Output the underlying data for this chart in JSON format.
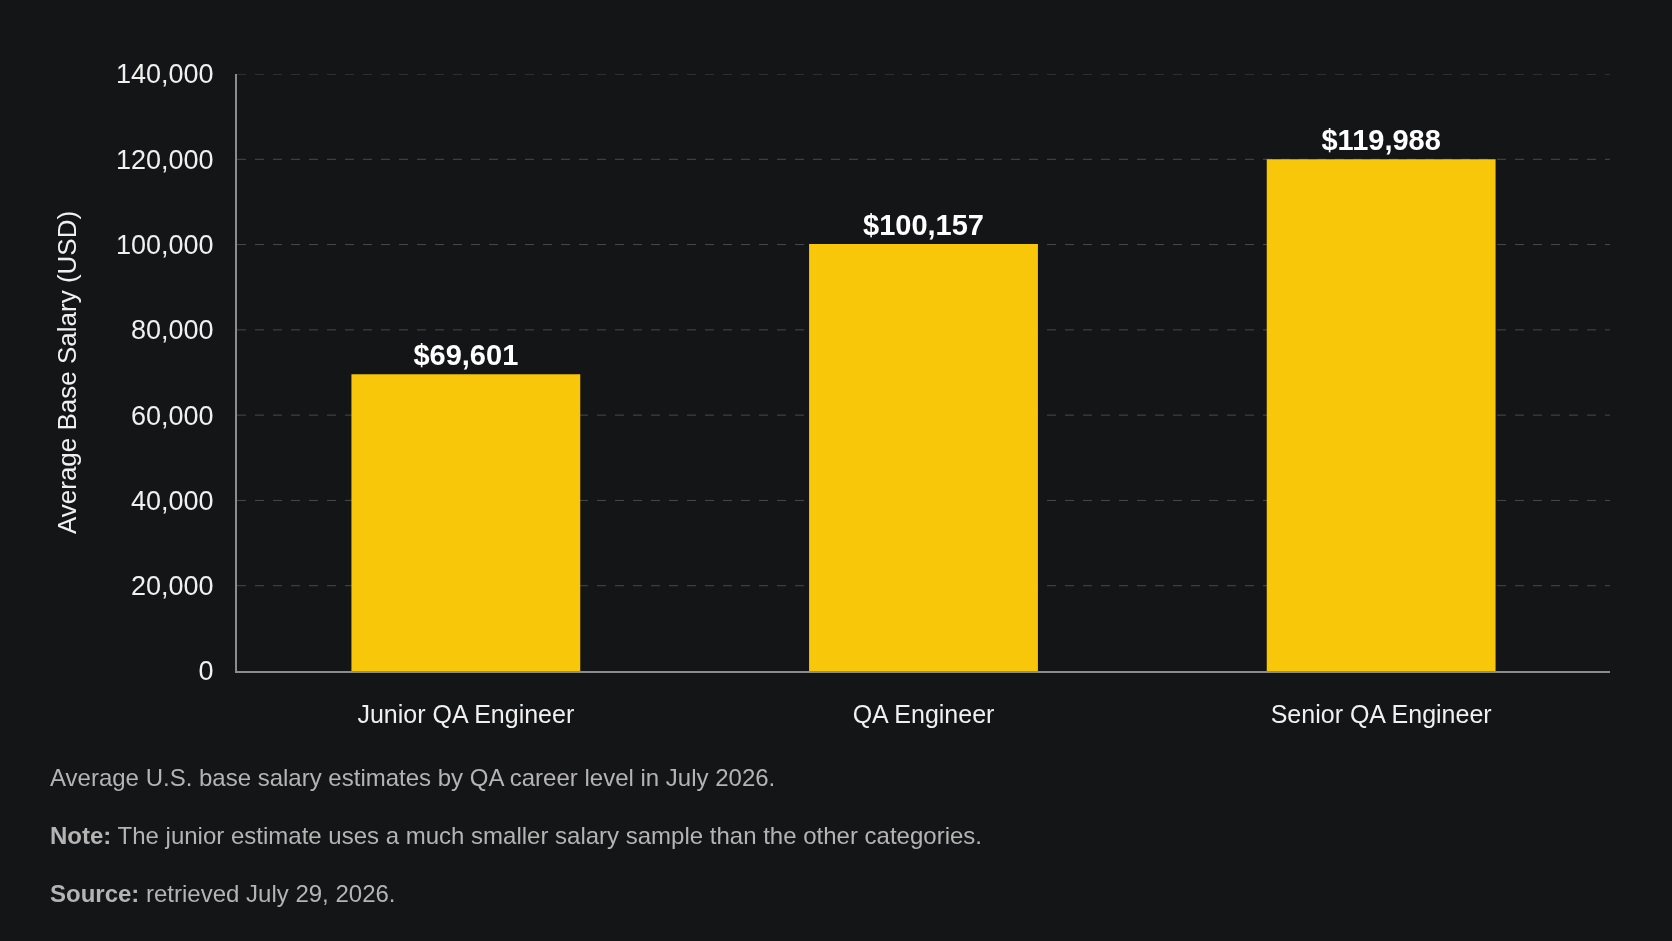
{
  "chart_data": {
    "type": "bar",
    "categories": [
      "Junior QA Engineer",
      "QA Engineer",
      "Senior QA Engineer"
    ],
    "values": [
      69601,
      100157,
      119988
    ],
    "color": "#f8c70a",
    "value_labels": [
      "$69,601",
      "$100,157",
      "$119,988"
    ],
    "ylabel": "Average Base Salary (USD)",
    "ylim": [
      0,
      140000
    ],
    "yticks": [
      0,
      {
        "value": 20000,
        "label": "20,000"
      },
      {
        "value": 40000,
        "label": "40,000"
      },
      {
        "value": 60000,
        "label": "60,000"
      },
      {
        "value": 80000,
        "label": "80,000"
      },
      {
        "value": 100000,
        "label": "100,000"
      },
      {
        "value": 120000,
        "label": "120,000"
      },
      {
        "value": 140000,
        "label": "140,000"
      }
    ],
    "grid": "y",
    "annotations": [
      "Average U.S. base salary estimates by QA career level in July 2026.",
      "Note: The junior estimate uses a much smaller salary sample than the other categories.",
      "Source: retrieved July 29, 2026."
    ]
  }
}
